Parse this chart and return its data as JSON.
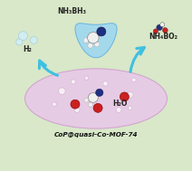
{
  "bg_color": "#d8e8c8",
  "title_text": "CoP@quasi-Co-MOF-74",
  "label_h2": "H₂",
  "label_nh3bh3": "NH₃BH₃",
  "label_nh4bo2": "NH₄BO₂",
  "label_h2o": "H₂O",
  "ellipse_color": "#e8c8e8",
  "ellipse_edge": "#d0a0d0",
  "drop_color": "#a0d8f0",
  "drop_edge": "#60b0e0",
  "arrow_color": "#40c0e0",
  "bubble_color": "#d0eef8",
  "mol_white": "#f0f0f0",
  "mol_blue": "#203080",
  "mol_red": "#cc2020",
  "mol_dark": "#404040",
  "nh4bo2_atoms": [
    [
      8.35,
      7.6,
      0.16,
      "#203080"
    ],
    [
      8.65,
      7.45,
      0.14,
      "#cc2020"
    ],
    [
      8.15,
      7.4,
      0.13,
      "#cc2020"
    ],
    [
      8.5,
      7.75,
      0.12,
      "#f0f0ee"
    ]
  ]
}
